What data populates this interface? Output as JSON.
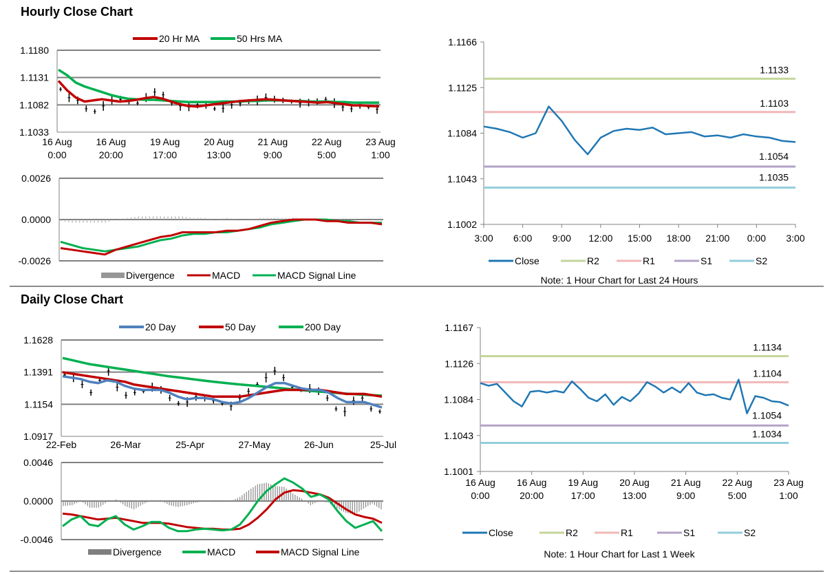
{
  "sections": {
    "hourly_title": "Hourly Close Chart",
    "daily_title": "Daily Close Chart"
  },
  "colors": {
    "red_ma": "#c00000",
    "green_ma": "#00b050",
    "blue_ma": "#4f81bd",
    "close": "#1f77b4",
    "r2": "#c3d69b",
    "r1": "#f2b7b7",
    "s1": "#b3a2c7",
    "s2": "#92cddc",
    "divergence": "#7f7f7f",
    "grid": "#808080"
  },
  "chart_data": [
    {
      "id": "hourly_price",
      "type": "line",
      "legend": [
        "20 Hr MA",
        "50 Hrs MA"
      ],
      "yticks": [
        "1.1180",
        "1.1131",
        "1.1082",
        "1.1033"
      ],
      "ylim": [
        1.1033,
        1.118
      ],
      "xticks": [
        [
          "16 Aug",
          "0:00"
        ],
        [
          "16 Aug",
          "20:00"
        ],
        [
          "19 Aug",
          "17:00"
        ],
        [
          "20 Aug",
          "13:00"
        ],
        [
          "21 Aug",
          "9:00"
        ],
        [
          "22 Aug",
          "5:00"
        ],
        [
          "23 Aug",
          "1:00"
        ]
      ],
      "series": [
        {
          "name": "Price",
          "values": [
            1.111,
            1.1095,
            1.109,
            1.1075,
            1.107,
            1.108,
            1.109,
            1.1092,
            1.1088,
            1.1085,
            1.1095,
            1.1105,
            1.11,
            1.1085,
            1.108,
            1.1078,
            1.1082,
            1.108,
            1.1075,
            1.1076,
            1.1082,
            1.1085,
            1.1088,
            1.109,
            1.1095,
            1.1092,
            1.109,
            1.1088,
            1.1085,
            1.1086,
            1.1088,
            1.1092,
            1.1085,
            1.1078,
            1.1075,
            1.108,
            1.1078,
            1.1074
          ]
        },
        {
          "name": "20 Hr MA",
          "values": [
            1.1125,
            1.1108,
            1.1095,
            1.1088,
            1.109,
            1.1092,
            1.109,
            1.1088,
            1.1089,
            1.1091,
            1.1094,
            1.1096,
            1.1093,
            1.1088,
            1.1083,
            1.108,
            1.1079,
            1.1081,
            1.1083,
            1.1085,
            1.1087,
            1.1089,
            1.109,
            1.1091,
            1.1092,
            1.1091,
            1.109,
            1.1089,
            1.1088,
            1.1087,
            1.1086,
            1.1087,
            1.1085,
            1.1083,
            1.1081,
            1.1081,
            1.108,
            1.1079
          ]
        },
        {
          "name": "50 Hrs MA",
          "values": [
            1.1145,
            1.1135,
            1.1122,
            1.1115,
            1.111,
            1.1105,
            1.11,
            1.1096,
            1.1093,
            1.1092,
            1.1091,
            1.1091,
            1.109,
            1.1089,
            1.1088,
            1.1087,
            1.1087,
            1.1087,
            1.1087,
            1.1088,
            1.1088,
            1.1088,
            1.1089,
            1.1089,
            1.109,
            1.109,
            1.109,
            1.1089,
            1.1089,
            1.1088,
            1.1088,
            1.1088,
            1.1087,
            1.1087,
            1.1086,
            1.1086,
            1.1086,
            1.1086
          ]
        }
      ]
    },
    {
      "id": "hourly_macd",
      "type": "line",
      "legend": [
        "Divergence",
        "MACD",
        "MACD Signal Line"
      ],
      "yticks": [
        "0.0026",
        "0.0000",
        "-0.0026"
      ],
      "ylim": [
        -0.0026,
        0.0026
      ],
      "series": [
        {
          "name": "MACD",
          "values": [
            -0.0018,
            -0.0019,
            -0.002,
            -0.0021,
            -0.0022,
            -0.0019,
            -0.0017,
            -0.0015,
            -0.0013,
            -0.0011,
            -0.001,
            -0.0008,
            -0.0008,
            -0.0008,
            -0.0008,
            -0.0007,
            -0.0007,
            -0.0006,
            -0.0004,
            -0.0002,
            -0.0001,
            0.0,
            0.0,
            0.0,
            -0.0001,
            -0.0001,
            -0.0002,
            -0.0002,
            -0.0002,
            -0.0003
          ]
        },
        {
          "name": "MACD Signal Line",
          "values": [
            -0.0014,
            -0.0016,
            -0.0018,
            -0.0019,
            -0.002,
            -0.0019,
            -0.0018,
            -0.0017,
            -0.0015,
            -0.0013,
            -0.0012,
            -0.001,
            -0.0009,
            -0.0009,
            -0.0008,
            -0.0008,
            -0.0007,
            -0.0006,
            -0.0005,
            -0.0003,
            -0.0002,
            -0.0001,
            0.0,
            0.0,
            0.0,
            -0.0001,
            -0.0001,
            -0.0002,
            -0.0002,
            -0.0002
          ]
        },
        {
          "name": "Divergence",
          "values": [
            -0.0001,
            -0.0002,
            -0.0002,
            -0.0002,
            -0.0002,
            0.0,
            0.0001,
            0.0002,
            0.0002,
            0.0002,
            0.0002,
            0.0002,
            0.0001,
            0.0001,
            0.0,
            0.0001,
            0.0,
            0.0,
            0.0001,
            0.0001,
            0.0001,
            0.0001,
            0.0,
            0.0,
            0.0,
            0.0,
            -0.0001,
            0.0,
            0.0,
            -0.0001
          ]
        }
      ]
    },
    {
      "id": "hourly_levels",
      "type": "line",
      "ylim": [
        1.1002,
        1.1166
      ],
      "yticks": [
        "1.1166",
        "1.1125",
        "1.1084",
        "1.1043",
        "1.1002"
      ],
      "xticks": [
        "3:00",
        "6:00",
        "9:00",
        "12:00",
        "15:00",
        "18:00",
        "21:00",
        "0:00",
        "3:00"
      ],
      "levels": {
        "R2": "1.1133",
        "R1": "1.1103",
        "S1": "1.1054",
        "S2": "1.1035"
      },
      "level_values": {
        "R2": 1.1133,
        "R1": 1.1103,
        "S1": 1.1054,
        "S2": 1.1035
      },
      "legend": [
        "Close",
        "R2",
        "R1",
        "S1",
        "S2"
      ],
      "note": "Note: 1 Hour Chart for Last 24 Hours",
      "series": [
        {
          "name": "Close",
          "values": [
            1.109,
            1.1088,
            1.1085,
            1.108,
            1.1084,
            1.1108,
            1.1095,
            1.1078,
            1.1065,
            1.108,
            1.1086,
            1.1088,
            1.1087,
            1.1089,
            1.1083,
            1.1084,
            1.1085,
            1.1081,
            1.1082,
            1.108,
            1.1083,
            1.1081,
            1.108,
            1.1077,
            1.1076
          ]
        }
      ]
    },
    {
      "id": "daily_price",
      "type": "line",
      "legend": [
        "20 Day",
        "50 Day",
        "200 Day"
      ],
      "yticks": [
        "1.1628",
        "1.1391",
        "1.1154",
        "1.0917"
      ],
      "ylim": [
        1.0917,
        1.1628
      ],
      "xticks": [
        "22-Feb",
        "26-Mar",
        "25-Apr",
        "27-May",
        "26-Jun",
        "25-Jul"
      ],
      "series": [
        {
          "name": "Price",
          "values": [
            1.137,
            1.135,
            1.13,
            1.124,
            1.133,
            1.14,
            1.128,
            1.122,
            1.124,
            1.125,
            1.128,
            1.126,
            1.12,
            1.116,
            1.117,
            1.121,
            1.12,
            1.118,
            1.116,
            1.114,
            1.12,
            1.125,
            1.13,
            1.135,
            1.14,
            1.135,
            1.128,
            1.126,
            1.127,
            1.125,
            1.12,
            1.112,
            1.11,
            1.118,
            1.12,
            1.112,
            1.11
          ]
        },
        {
          "name": "20 Day",
          "values": [
            1.136,
            1.135,
            1.134,
            1.132,
            1.131,
            1.133,
            1.132,
            1.129,
            1.127,
            1.126,
            1.126,
            1.126,
            1.124,
            1.121,
            1.119,
            1.12,
            1.12,
            1.119,
            1.117,
            1.116,
            1.117,
            1.12,
            1.124,
            1.128,
            1.131,
            1.131,
            1.129,
            1.127,
            1.126,
            1.126,
            1.124,
            1.12,
            1.117,
            1.117,
            1.117,
            1.115,
            1.113
          ]
        },
        {
          "name": "50 Day",
          "values": [
            1.139,
            1.138,
            1.137,
            1.136,
            1.135,
            1.134,
            1.133,
            1.132,
            1.13,
            1.129,
            1.128,
            1.127,
            1.126,
            1.125,
            1.124,
            1.123,
            1.122,
            1.121,
            1.121,
            1.121,
            1.121,
            1.122,
            1.123,
            1.124,
            1.125,
            1.126,
            1.126,
            1.126,
            1.126,
            1.126,
            1.125,
            1.124,
            1.123,
            1.123,
            1.123,
            1.122,
            1.121
          ]
        },
        {
          "name": "200 Day",
          "values": [
            1.1495,
            1.148,
            1.1465,
            1.145,
            1.144,
            1.143,
            1.142,
            1.141,
            1.14,
            1.139,
            1.138,
            1.137,
            1.136,
            1.1352,
            1.1344,
            1.1336,
            1.1328,
            1.132,
            1.1313,
            1.1306,
            1.13,
            1.1294,
            1.1288,
            1.1282,
            1.1276,
            1.127,
            1.1264,
            1.1258,
            1.1252,
            1.1247,
            1.1242,
            1.1237,
            1.1232,
            1.1228,
            1.1224,
            1.122,
            1.1217
          ]
        }
      ]
    },
    {
      "id": "daily_macd",
      "type": "line",
      "legend": [
        "Divergence",
        "MACD",
        "MACD Signal Line"
      ],
      "yticks": [
        "0.0046",
        "0.0000",
        "-0.0046"
      ],
      "ylim": [
        -0.0046,
        0.0046
      ],
      "series": [
        {
          "name": "MACD",
          "values": [
            -0.003,
            -0.0022,
            -0.0018,
            -0.0028,
            -0.003,
            -0.0022,
            -0.0018,
            -0.0028,
            -0.0034,
            -0.003,
            -0.0025,
            -0.0025,
            -0.0032,
            -0.0036,
            -0.0036,
            -0.0034,
            -0.0033,
            -0.0034,
            -0.0035,
            -0.0034,
            -0.0028,
            -0.0015,
            0.0,
            0.0012,
            0.002,
            0.0027,
            0.0022,
            0.0015,
            0.0005,
            0.0008,
            0.0002,
            -0.0012,
            -0.0024,
            -0.0032,
            -0.0028,
            -0.0024,
            -0.0036
          ]
        },
        {
          "name": "MACD Signal Line",
          "values": [
            -0.0015,
            -0.0016,
            -0.0018,
            -0.002,
            -0.0022,
            -0.0021,
            -0.002,
            -0.0022,
            -0.0024,
            -0.0026,
            -0.0026,
            -0.0026,
            -0.0027,
            -0.0029,
            -0.0031,
            -0.0032,
            -0.0033,
            -0.0033,
            -0.0034,
            -0.0034,
            -0.0033,
            -0.0028,
            -0.002,
            -0.001,
            0.0002,
            0.001,
            0.0013,
            0.0012,
            0.001,
            0.0008,
            0.0004,
            -0.0003,
            -0.001,
            -0.0016,
            -0.0019,
            -0.0021,
            -0.0026
          ]
        },
        {
          "name": "Divergence",
          "values": [
            -0.0006,
            -0.0005,
            0.0,
            -0.0008,
            -0.0008,
            -0.0001,
            0.0002,
            -0.0006,
            -0.001,
            -0.0004,
            0.0001,
            0.0001,
            -0.0005,
            -0.0007,
            -0.0005,
            -0.0002,
            0.0,
            -0.0001,
            -0.0001,
            0.0,
            0.0005,
            0.0013,
            0.002,
            0.0022,
            0.0018,
            0.0017,
            0.0009,
            0.0003,
            -0.0005,
            0.0,
            -0.0002,
            -0.0009,
            -0.0014,
            -0.0016,
            -0.0009,
            -0.0003,
            -0.001
          ]
        }
      ]
    },
    {
      "id": "weekly_levels",
      "type": "line",
      "ylim": [
        1.1001,
        1.1167
      ],
      "yticks": [
        "1.1167",
        "1.1126",
        "1.1084",
        "1.1043",
        "1.1001"
      ],
      "xticks": [
        [
          "16 Aug",
          "0:00"
        ],
        [
          "16 Aug",
          "20:00"
        ],
        [
          "19 Aug",
          "17:00"
        ],
        [
          "20 Aug",
          "13:00"
        ],
        [
          "21 Aug",
          "9:00"
        ],
        [
          "22 Aug",
          "5:00"
        ],
        [
          "23 Aug",
          "1:00"
        ]
      ],
      "levels": {
        "R2": "1.1134",
        "R1": "1.1104",
        "S1": "1.1054",
        "S2": "1.1034"
      },
      "level_values": {
        "R2": 1.1134,
        "R1": 1.1104,
        "S1": 1.1054,
        "S2": 1.1034
      },
      "legend": [
        "Close",
        "R2",
        "R1",
        "S1",
        "S2"
      ],
      "note": "Note: 1 Hour Chart for Last 1 Week",
      "series": [
        {
          "name": "Close",
          "values": [
            1.1103,
            1.11,
            1.1102,
            1.1092,
            1.1082,
            1.1076,
            1.1093,
            1.1094,
            1.1092,
            1.1094,
            1.1092,
            1.1105,
            1.1096,
            1.1086,
            1.1082,
            1.109,
            1.1078,
            1.1087,
            1.1082,
            1.1091,
            1.1104,
            1.1099,
            1.1092,
            1.1098,
            1.1092,
            1.1103,
            1.1092,
            1.1089,
            1.109,
            1.1086,
            1.1084,
            1.1107,
            1.1068,
            1.1088,
            1.1086,
            1.1082,
            1.1081,
            1.1077
          ]
        }
      ]
    }
  ]
}
